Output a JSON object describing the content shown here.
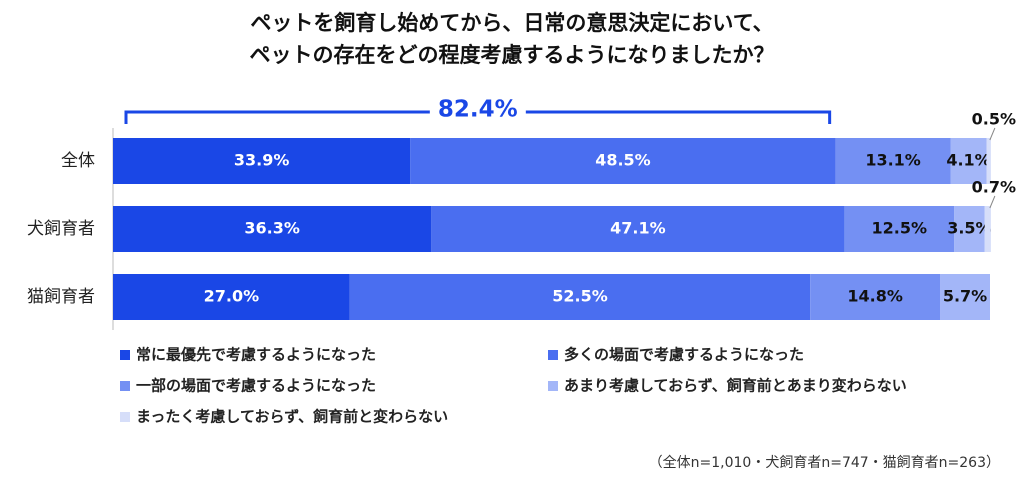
{
  "chart_data": {
    "type": "stacked-bar-horizontal",
    "title": [
      "ペットを飼育し始めてから、日常の意思決定において、",
      "ペットの存在をどの程度考慮するようになりましたか？"
    ],
    "categories": [
      "全体",
      "犬飼育者",
      "猫飼育者"
    ],
    "xlim": [
      0,
      100
    ],
    "series": [
      {
        "name": "常に最優先で考慮するようになった",
        "color": "#1a47e6",
        "values": [
          33.9,
          36.3,
          27.0
        ],
        "value_labels": [
          "33.9%",
          "36.3%",
          "27.0%"
        ]
      },
      {
        "name": "多くの場面で考慮するようになった",
        "color": "#4a6ef0",
        "values": [
          48.5,
          47.1,
          52.5
        ],
        "value_labels": [
          "48.5%",
          "47.1%",
          "52.5%"
        ]
      },
      {
        "name": "一部の場面で考慮するようになった",
        "color": "#7490f3",
        "values": [
          13.1,
          12.5,
          14.8
        ],
        "value_labels": [
          "13.1%",
          "12.5%",
          "14.8%"
        ]
      },
      {
        "name": "あまり考慮しておらず、飼育前とあまり変わらない",
        "color": "#a3b6f8",
        "values": [
          4.1,
          3.5,
          5.7
        ],
        "value_labels": [
          "4.1%",
          "3.5%",
          "5.7%"
        ]
      },
      {
        "name": "まったく考慮しておらず、飼育前と変わらない",
        "color": "#d6def9",
        "values": [
          0.5,
          0.7,
          0
        ],
        "value_labels": [
          "0.5%",
          "0.7%",
          null
        ]
      }
    ],
    "annotation": {
      "value": 82.4,
      "label": "82.4%"
    },
    "note": "（全体n=1,010・犬飼育者n=747・猫飼育者n=263）"
  }
}
